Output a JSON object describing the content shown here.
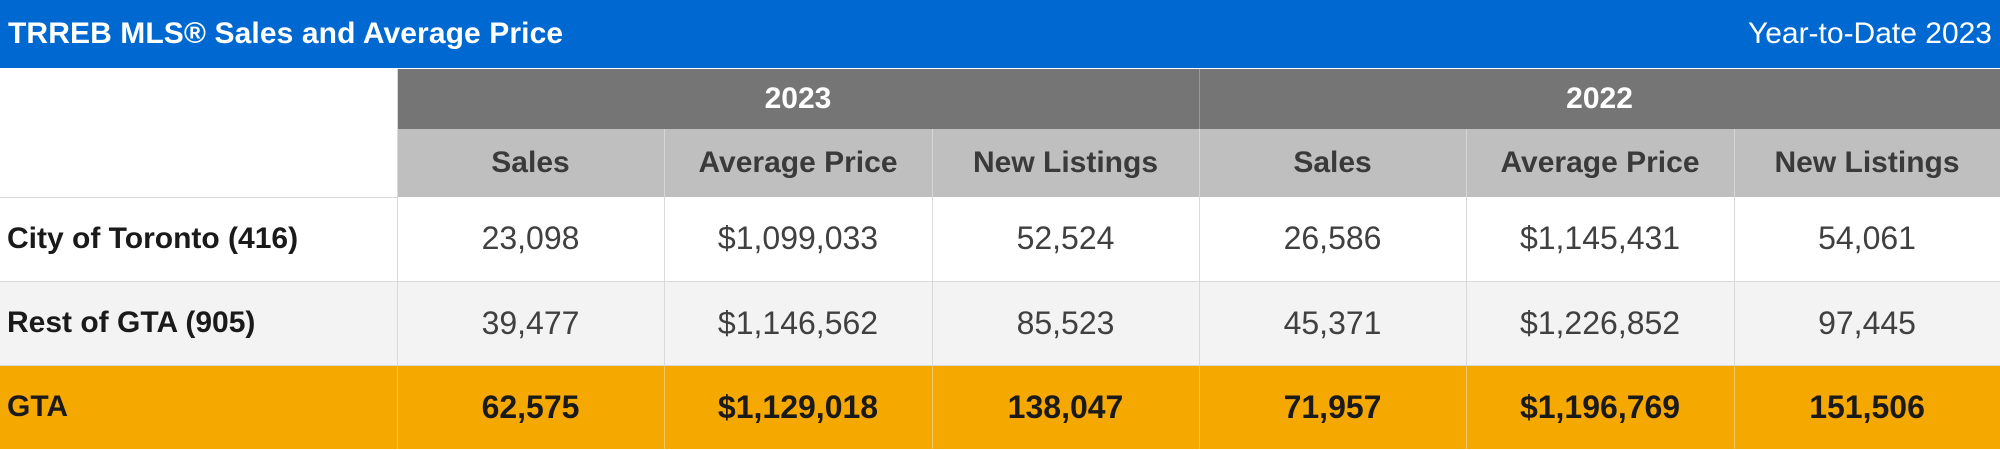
{
  "header": {
    "title": "TRREB MLS® Sales and Average Price",
    "period": "Year-to-Date 2023"
  },
  "years": [
    "2023",
    "2022"
  ],
  "columns": [
    "Sales",
    "Average Price",
    "New Listings",
    "Sales",
    "Average Price",
    "New Listings"
  ],
  "rows": [
    {
      "label": "City of Toronto (416)",
      "values": [
        "23,098",
        "$1,099,033",
        "52,524",
        "26,586",
        "$1,145,431",
        "54,061"
      ]
    },
    {
      "label": "Rest of GTA (905)",
      "values": [
        "39,477",
        "$1,146,562",
        "85,523",
        "45,371",
        "$1,226,852",
        "97,445"
      ]
    },
    {
      "label": "GTA",
      "values": [
        "62,575",
        "$1,129,018",
        "138,047",
        "71,957",
        "$1,196,769",
        "151,506"
      ]
    }
  ],
  "colors": {
    "title_bar": "#0069d1",
    "year_header": "#757575",
    "column_header": "#bfbfbf",
    "total_row": "#f5a800"
  }
}
